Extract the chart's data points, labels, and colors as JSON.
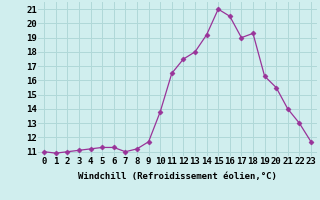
{
  "x": [
    0,
    1,
    2,
    3,
    4,
    5,
    6,
    7,
    8,
    9,
    10,
    11,
    12,
    13,
    14,
    15,
    16,
    17,
    18,
    19,
    20,
    21,
    22,
    23
  ],
  "y": [
    11.0,
    10.9,
    11.0,
    11.1,
    11.2,
    11.3,
    11.3,
    11.0,
    11.2,
    11.7,
    13.8,
    16.5,
    17.5,
    18.0,
    19.2,
    21.0,
    20.5,
    19.0,
    19.3,
    16.3,
    15.5,
    14.0,
    13.0,
    11.7
  ],
  "line_color": "#993399",
  "marker": "D",
  "marker_size": 2.5,
  "bg_color": "#d0eeee",
  "grid_color": "#b0d8d8",
  "xlabel": "Windchill (Refroidissement éolien,°C)",
  "ylabel_ticks": [
    11,
    12,
    13,
    14,
    15,
    16,
    17,
    18,
    19,
    20,
    21
  ],
  "xlim": [
    -0.5,
    23.5
  ],
  "ylim": [
    10.7,
    21.5
  ],
  "xlabel_fontsize": 6.5,
  "tick_fontsize": 6.5,
  "title": ""
}
